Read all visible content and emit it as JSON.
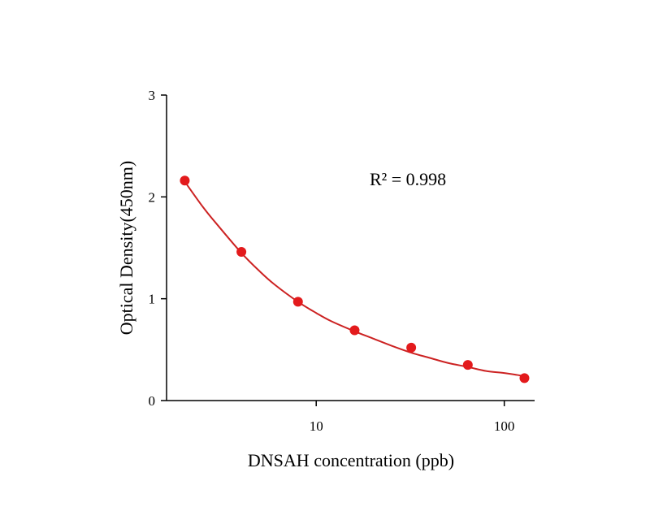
{
  "chart_data": {
    "type": "scatter",
    "title": "",
    "xlabel": "DNSAH concentration (ppb)",
    "ylabel": "Optical Density(450nm)",
    "xscale": "log",
    "xlim": [
      1.6,
      145
    ],
    "ylim": [
      0,
      3
    ],
    "x_ticks": [
      10,
      100
    ],
    "x_tick_labels": [
      "10",
      "100"
    ],
    "y_ticks": [
      0,
      1,
      2,
      3
    ],
    "y_tick_labels": [
      "0",
      "1",
      "2",
      "3"
    ],
    "grid": false,
    "legend": "none",
    "annotation": "R² = 0.998",
    "point_color": "#e31a1c",
    "curve_color": "#cc2222",
    "series": [
      {
        "points": [
          {
            "x": 2,
            "y": 2.16
          },
          {
            "x": 4,
            "y": 1.46
          },
          {
            "x": 8,
            "y": 0.97
          },
          {
            "x": 16,
            "y": 0.69
          },
          {
            "x": 32,
            "y": 0.52
          },
          {
            "x": 64,
            "y": 0.35
          },
          {
            "x": 128,
            "y": 0.22
          }
        ]
      }
    ],
    "fit_curve": {
      "x": [
        2,
        2.5,
        3,
        4,
        5,
        6,
        8,
        10,
        12,
        16,
        20,
        25,
        32,
        40,
        50,
        64,
        80,
        100,
        128
      ],
      "y": [
        2.15,
        1.9,
        1.72,
        1.45,
        1.27,
        1.14,
        0.97,
        0.86,
        0.78,
        0.68,
        0.61,
        0.54,
        0.47,
        0.42,
        0.37,
        0.33,
        0.29,
        0.27,
        0.24
      ]
    }
  }
}
